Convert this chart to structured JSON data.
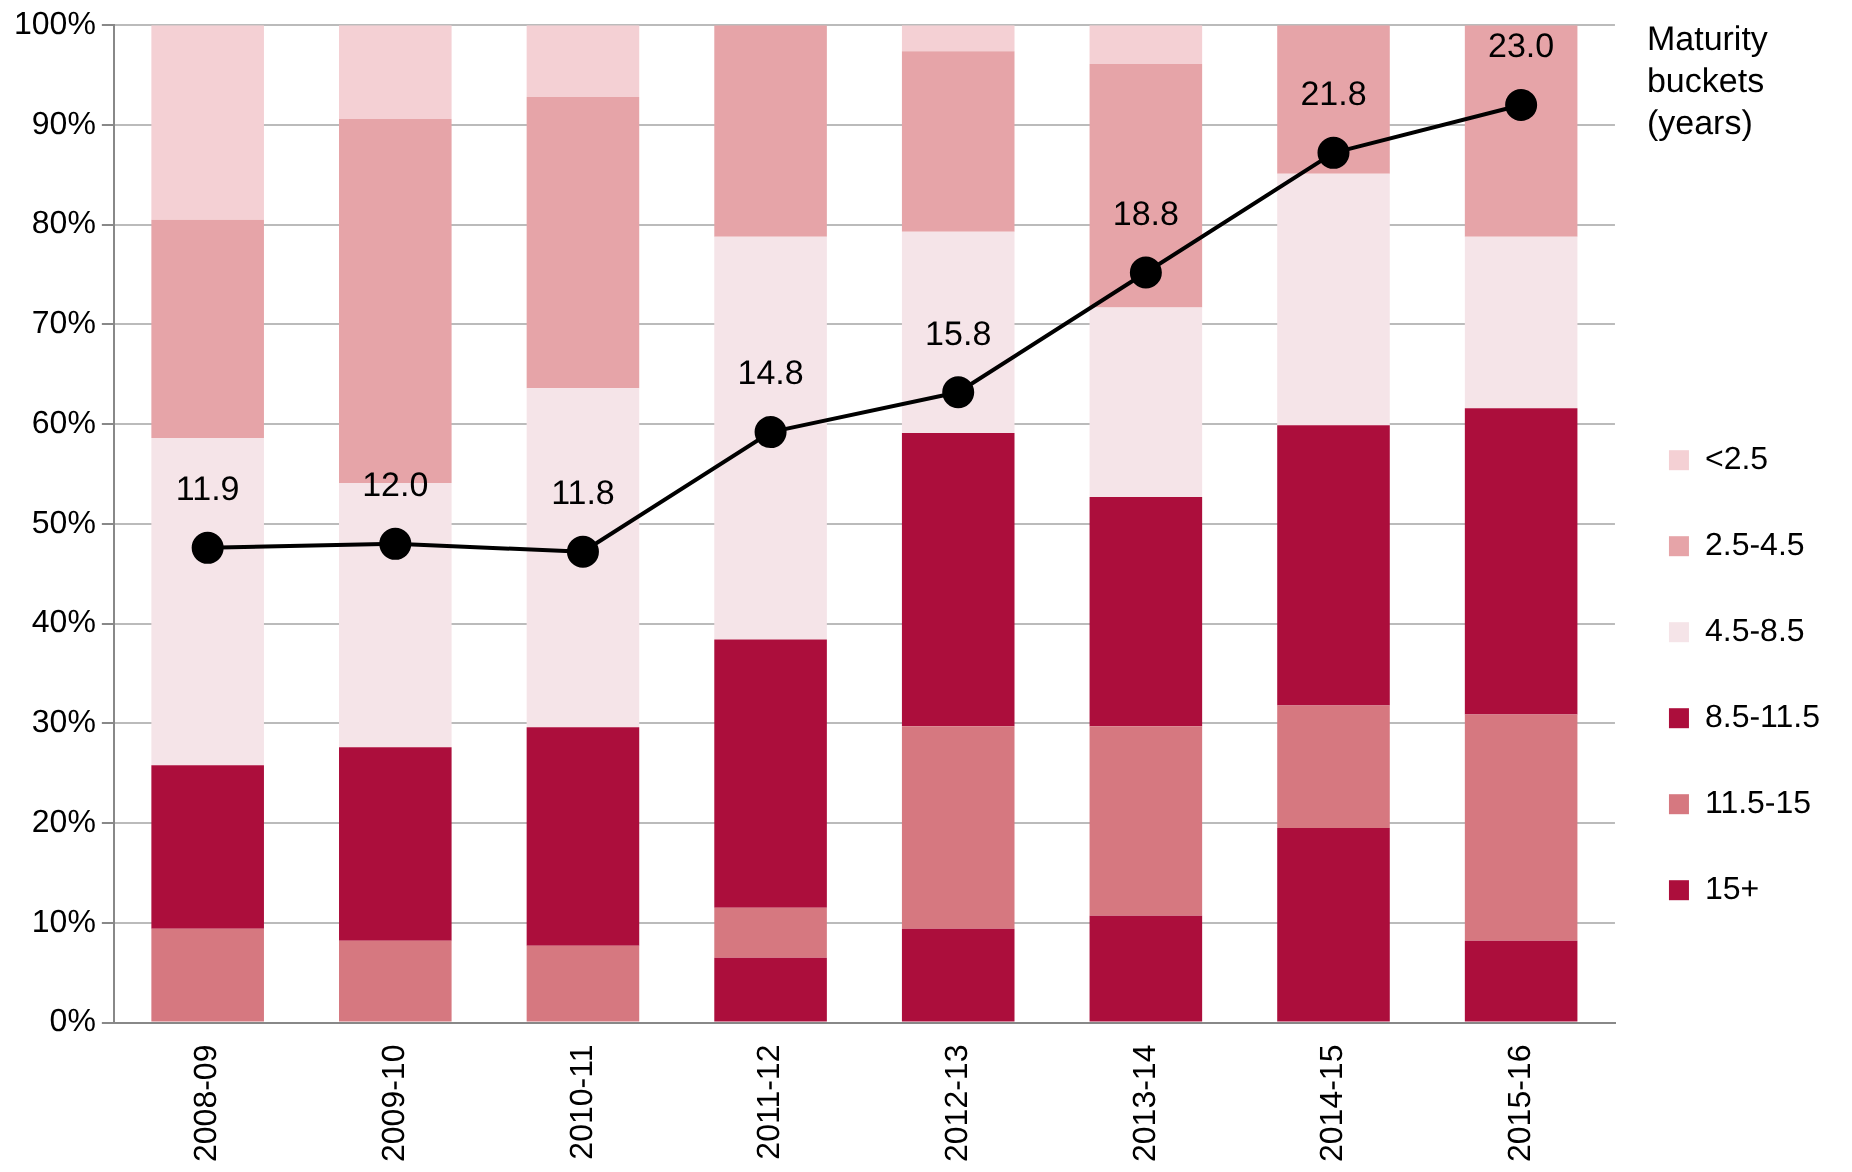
{
  "chart_data": {
    "type": "bar",
    "stacked": true,
    "legend_title": "Maturity buckets (years)",
    "legend": "right",
    "grid": "y",
    "categories": [
      "2008-09",
      "2009-10",
      "2010-11",
      "2011-12",
      "2012-13",
      "2013-14",
      "2014-15",
      "2015-16"
    ],
    "ylim": [
      0,
      100
    ],
    "yticks": [
      {
        "value": 0,
        "label": "0%"
      },
      {
        "value": 10,
        "label": "10%"
      },
      {
        "value": 20,
        "label": "20%"
      },
      {
        "value": 30,
        "label": "30%"
      },
      {
        "value": 40,
        "label": "40%"
      },
      {
        "value": 50,
        "label": "50%"
      },
      {
        "value": 60,
        "label": "60%"
      },
      {
        "value": 70,
        "label": "70%"
      },
      {
        "value": 80,
        "label": "80%"
      },
      {
        "value": 90,
        "label": "90%"
      },
      {
        "value": 100,
        "label": "100%"
      }
    ],
    "y2lim": [
      0,
      25
    ],
    "series": [
      {
        "name": "15+",
        "color": "#ac0e3c",
        "values": [
          0,
          0,
          0,
          6.5,
          9.4,
          10.7,
          19.5,
          8.2
        ]
      },
      {
        "name": "11.5-15",
        "color": "#d67880",
        "values": [
          9.4,
          8.2,
          7.7,
          5.0,
          20.3,
          19.0,
          12.3,
          22.7
        ]
      },
      {
        "name": "8.5-11.5",
        "color": "#ac0e3c",
        "values": [
          16.4,
          19.4,
          21.9,
          26.9,
          29.4,
          23.0,
          28.1,
          30.7
        ]
      },
      {
        "name": "4.5-8.5",
        "color": "#f5e4e8",
        "values": [
          32.8,
          26.5,
          34.0,
          40.4,
          20.2,
          19.0,
          25.2,
          17.2
        ]
      },
      {
        "name": "2.5-4.5",
        "color": "#e6a4a8",
        "values": [
          21.9,
          36.5,
          29.2,
          21.2,
          18.1,
          24.4,
          14.9,
          21.2
        ]
      },
      {
        "name": "<2.5",
        "color": "#f4d0d4",
        "values": [
          19.5,
          9.4,
          7.2,
          0,
          2.6,
          3.9,
          0,
          0
        ]
      },
      {
        "type": "line",
        "axis": "y2",
        "color": "#000000",
        "marker": "circle",
        "line_style": "solid",
        "values": [
          11.9,
          12.0,
          11.8,
          14.8,
          15.8,
          18.8,
          21.8,
          23.0
        ],
        "value_labels": [
          "11.9",
          "12.0",
          "11.8",
          "14.8",
          "15.8",
          "18.8",
          "21.8",
          "23.0"
        ]
      }
    ]
  }
}
